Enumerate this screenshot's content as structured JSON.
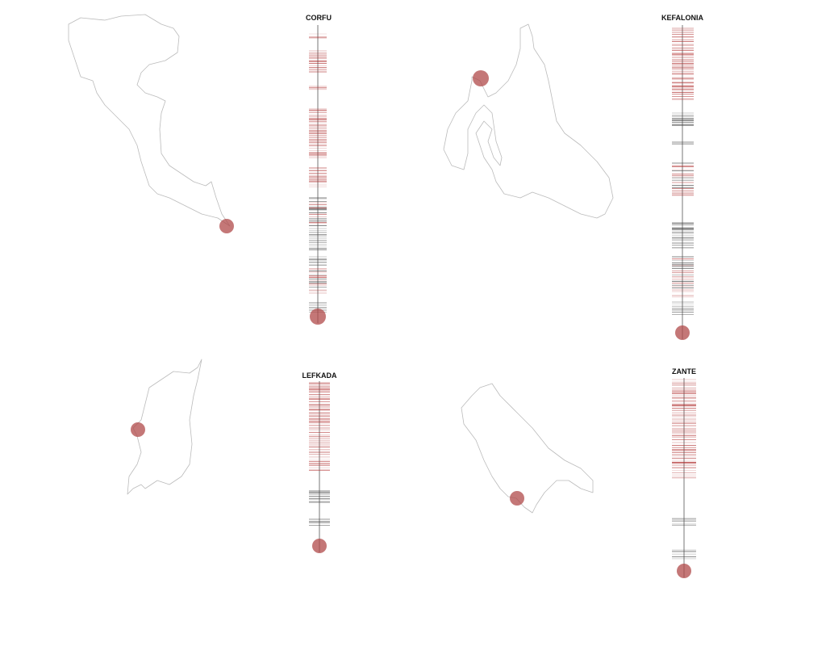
{
  "panels": [
    {
      "title": "CORFU"
    },
    {
      "title": "KEFALONIA"
    },
    {
      "title": "LEFKADA"
    },
    {
      "title": "ZANTE"
    }
  ]
}
